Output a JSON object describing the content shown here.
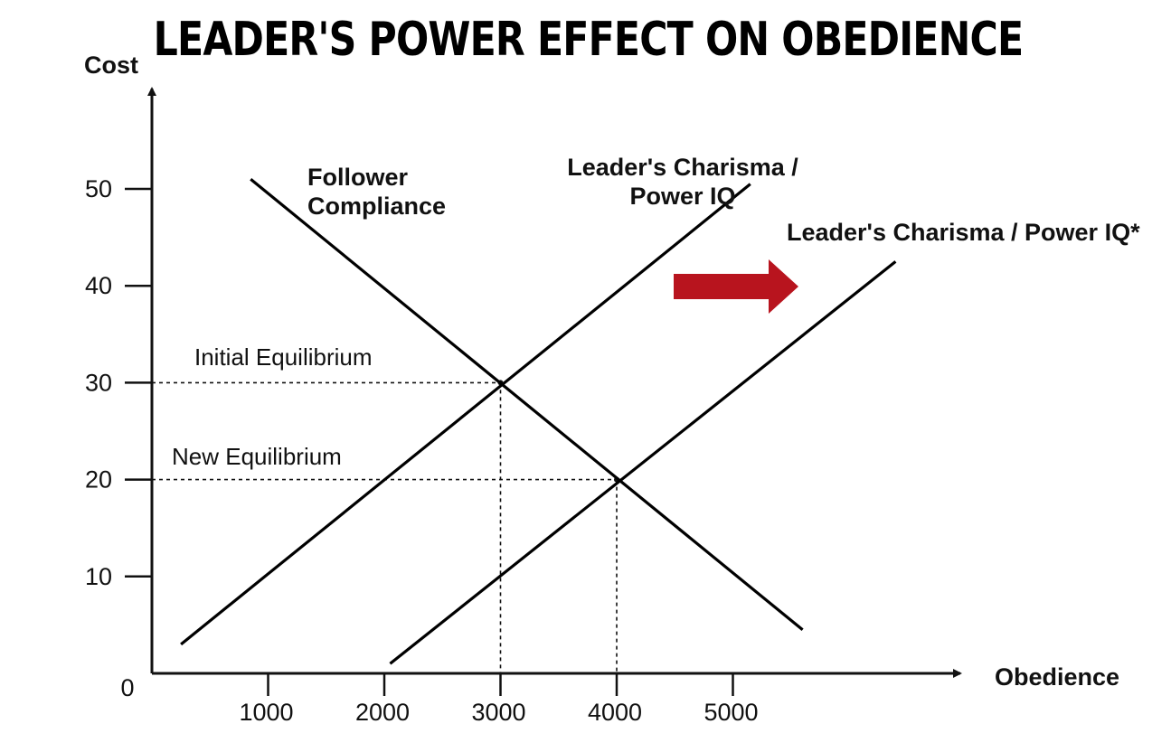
{
  "chart_data": {
    "type": "line",
    "title": "LEADER'S POWER EFFECT ON OBEDIENCE",
    "xlabel": "Obedience",
    "ylabel": "Cost",
    "xlim": [
      0,
      6800
    ],
    "ylim": [
      0,
      55
    ],
    "origin_label": "0",
    "x_ticks": [
      1000,
      2000,
      3000,
      4000,
      5000
    ],
    "y_ticks": [
      10,
      20,
      30,
      40,
      50
    ],
    "grid": false,
    "series": [
      {
        "name": "Follower Compliance",
        "label_lines": [
          "Follower",
          "Compliance"
        ],
        "points": [
          [
            850,
            51
          ],
          [
            5600,
            4.5
          ]
        ],
        "color": "#000000"
      },
      {
        "name": "Leader's Charisma / Power IQ",
        "label_lines": [
          "Leader's Charisma /",
          "Power IQ"
        ],
        "points": [
          [
            250,
            3
          ],
          [
            5150,
            50.5
          ]
        ],
        "color": "#000000"
      },
      {
        "name": "Leader's Charisma / Power IQ*",
        "label_lines": [
          "Leader's Charisma / Power IQ*"
        ],
        "points": [
          [
            2050,
            1
          ],
          [
            6400,
            42.5
          ]
        ],
        "color": "#000000"
      }
    ],
    "equilibria": [
      {
        "label": "Initial Equilibrium",
        "x": 3000,
        "y": 30
      },
      {
        "label": "New Equilibrium",
        "x": 4000,
        "y": 20
      }
    ],
    "shift_arrow": {
      "direction": "right",
      "color": "#b8141e"
    }
  }
}
